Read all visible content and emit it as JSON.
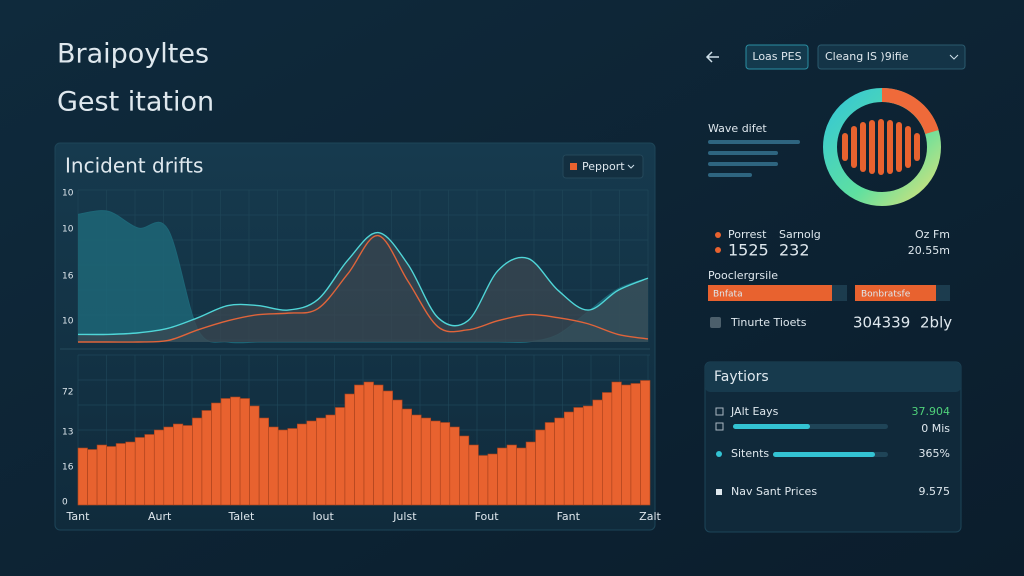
{
  "header": {
    "title": "Braipoyltes",
    "subtitle": "Gest itation"
  },
  "toolbar": {
    "button": "Loas PES",
    "dropdown": "Cleang IS )9ifie"
  },
  "panel": {
    "title": "Incident drifts",
    "filter": "Pepport"
  },
  "chart_data": [
    {
      "type": "area",
      "y_labels": [
        "10",
        "10",
        "16",
        "10"
      ],
      "ylim": [
        0,
        100
      ],
      "grid": true,
      "series": [
        {
          "color": "#1d6677",
          "values": [
            84,
            86,
            75,
            74,
            8,
            0,
            0,
            0,
            0,
            0,
            0,
            0,
            0,
            0,
            0,
            0,
            5,
            20,
            35,
            42
          ]
        },
        {
          "color": "#4fd6d8",
          "values": [
            5,
            5,
            6,
            9,
            16,
            24,
            24,
            21,
            28,
            54,
            72,
            51,
            16,
            14,
            47,
            55,
            34,
            21,
            34,
            42
          ]
        },
        {
          "color": "#e0643a",
          "values": [
            0,
            0,
            0,
            1,
            8,
            14,
            18,
            19,
            22,
            45,
            70,
            40,
            10,
            8,
            14,
            18,
            16,
            12,
            5,
            2
          ]
        }
      ]
    },
    {
      "type": "bar",
      "y_labels": [
        "72",
        "13",
        "16",
        "0"
      ],
      "x_labels": [
        "Tant",
        "Aurt",
        "Talet",
        "Iout",
        "Julst",
        "Fout",
        "Fant",
        "Zalt"
      ],
      "ylim": [
        0,
        100
      ],
      "grid": true,
      "color": "#e8622f",
      "values": [
        38,
        37,
        40,
        39,
        41,
        42,
        45,
        47,
        50,
        52,
        54,
        53,
        58,
        63,
        68,
        71,
        72,
        71,
        66,
        58,
        52,
        50,
        51,
        54,
        56,
        58,
        60,
        65,
        74,
        80,
        82,
        80,
        76,
        70,
        64,
        60,
        58,
        56,
        55,
        52,
        46,
        40,
        33,
        34,
        38,
        40,
        38,
        42,
        50,
        55,
        58,
        62,
        65,
        66,
        70,
        75,
        82,
        80,
        81,
        83
      ]
    }
  ],
  "wave": {
    "label": "Wave difet"
  },
  "stats": {
    "labels": [
      "Porrest",
      "Sarnolg",
      "Oz Fm"
    ],
    "values": [
      "1525",
      "232",
      "20.55m"
    ],
    "section": "Pooclergrsile",
    "bars": [
      "Bnfata",
      "Bonbratsfe"
    ],
    "row": {
      "label": "Tinurte Tioets",
      "value": "304339",
      "unit": "2bly"
    }
  },
  "factors": {
    "title": "Faytiors",
    "rows": [
      {
        "label": "JAlt Eays",
        "value": "37.904"
      },
      {
        "label": "",
        "value": "0 Mis"
      },
      {
        "label": "Sitents",
        "value": "365%"
      },
      {
        "label": "Nav Sant Prices",
        "value": "9.575"
      }
    ]
  }
}
